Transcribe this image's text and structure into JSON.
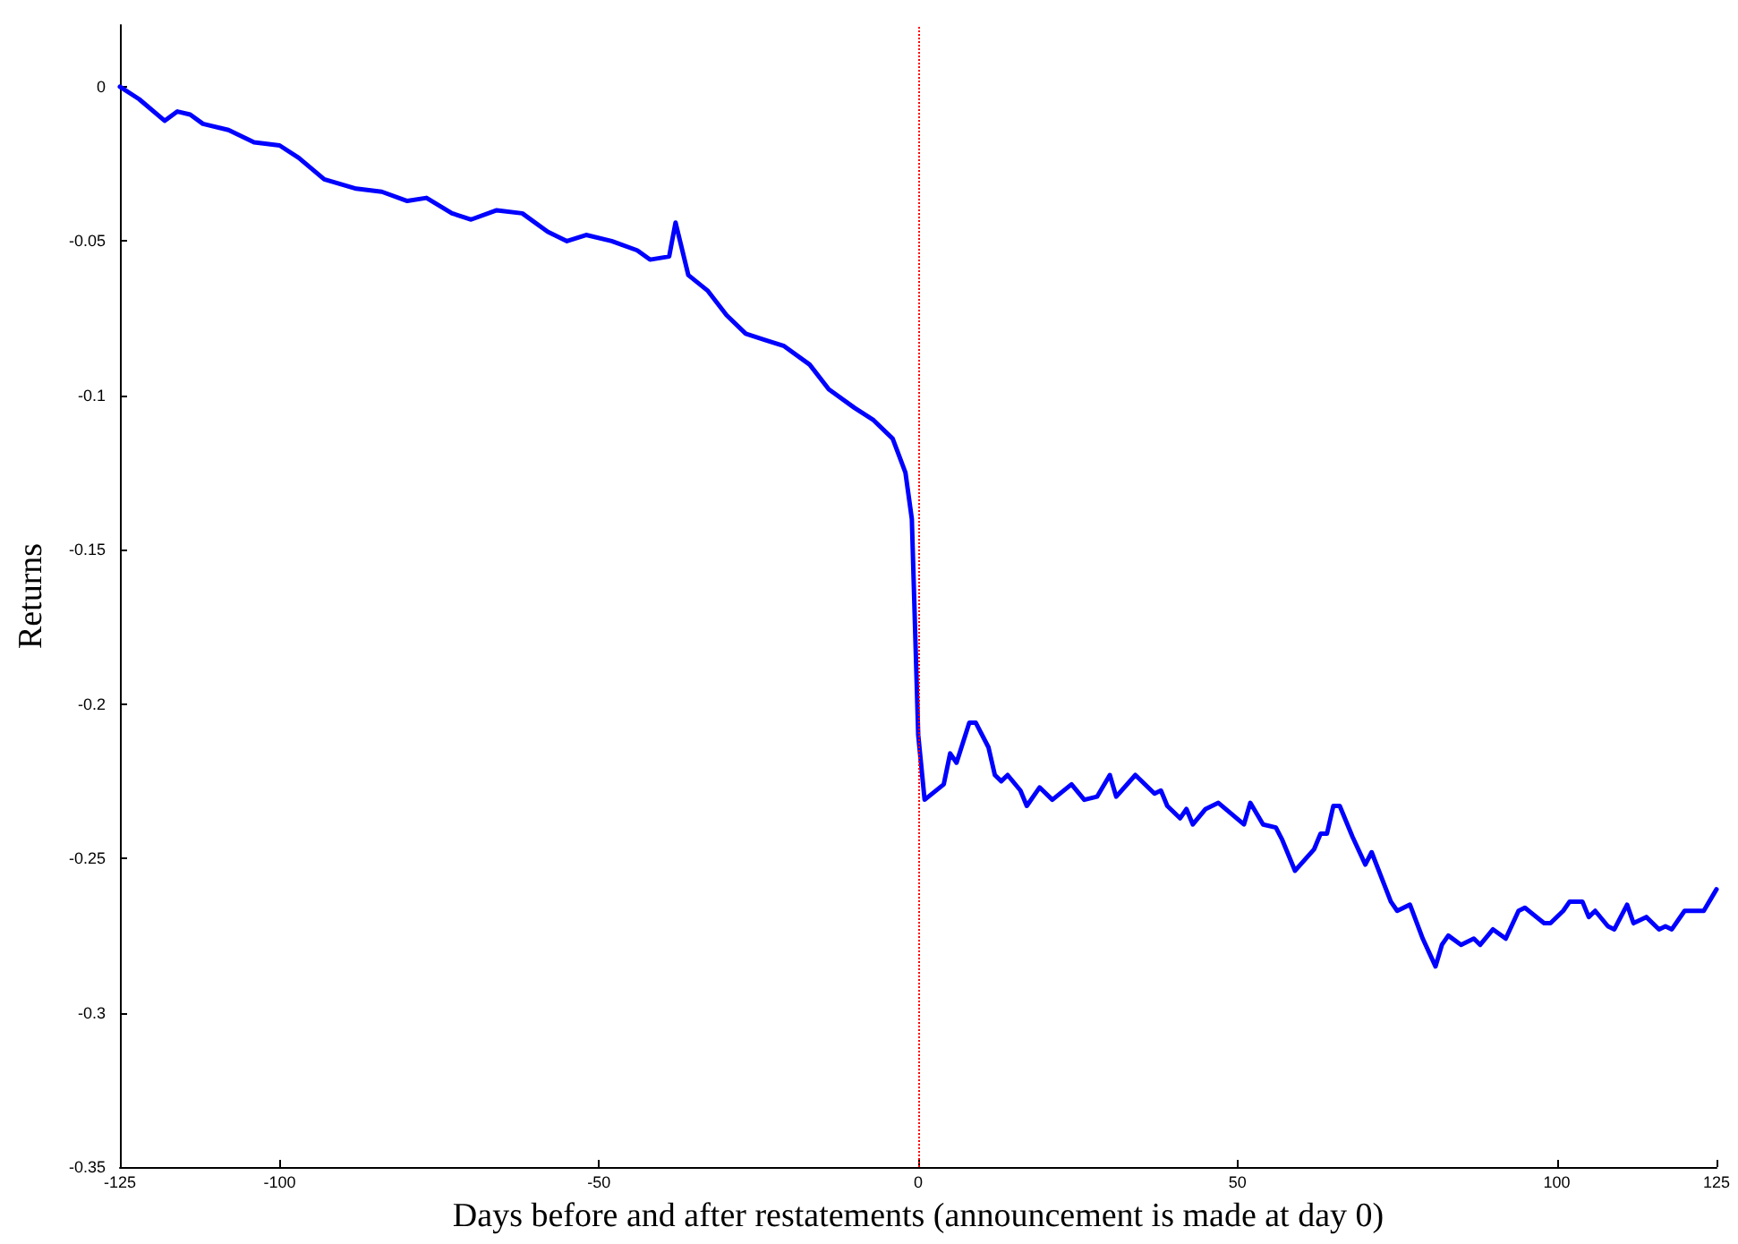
{
  "chart_data": {
    "type": "line",
    "xlabel": "Days before and after restatements (announcement is made at day 0)",
    "ylabel": "Returns",
    "xlim": [
      -125,
      125
    ],
    "xticks": [
      -125,
      -100,
      -50,
      0,
      50,
      100,
      125
    ],
    "ylim": [
      -0.35,
      0.02
    ],
    "yticks": [
      -0.35,
      -0.3,
      -0.25,
      -0.2,
      -0.15,
      -0.1,
      -0.05,
      0
    ],
    "grid": false,
    "marker": "none",
    "line_style": "solid",
    "ref_lines": [
      {
        "axis": "x",
        "value": 0,
        "color": "#ff0000",
        "line_style": "dotted"
      }
    ],
    "series": [
      {
        "color": "#0000ff",
        "x": [
          -125,
          -122,
          -118,
          -116,
          -114,
          -112,
          -108,
          -104,
          -100,
          -97,
          -93,
          -88,
          -84,
          -80,
          -77,
          -73,
          -70,
          -66,
          -62,
          -58,
          -55,
          -52,
          -48,
          -44,
          -42,
          -39,
          -38,
          -36,
          -33,
          -30,
          -27,
          -24,
          -21,
          -17,
          -14,
          -10,
          -7,
          -4,
          -2,
          -1,
          0,
          1,
          4,
          5,
          6,
          8,
          9,
          11,
          12,
          13,
          14,
          16,
          17,
          19,
          21,
          24,
          26,
          28,
          30,
          31,
          34,
          37,
          38,
          39,
          41,
          42,
          43,
          45,
          47,
          51,
          52,
          54,
          56,
          57,
          59,
          62,
          63,
          64,
          65,
          66,
          68,
          70,
          71,
          74,
          75,
          77,
          79,
          81,
          82,
          83,
          85,
          87,
          88,
          90,
          92,
          94,
          95,
          98,
          99,
          101,
          102,
          104,
          105,
          106,
          108,
          109,
          111,
          112,
          114,
          116,
          117,
          118,
          120,
          123,
          125
        ],
        "values": [
          0,
          -0.004,
          -0.011,
          -0.008,
          -0.009,
          -0.012,
          -0.014,
          -0.018,
          -0.019,
          -0.023,
          -0.03,
          -0.033,
          -0.034,
          -0.037,
          -0.036,
          -0.041,
          -0.043,
          -0.04,
          -0.041,
          -0.047,
          -0.05,
          -0.048,
          -0.05,
          -0.053,
          -0.056,
          -0.055,
          -0.044,
          -0.061,
          -0.066,
          -0.074,
          -0.08,
          -0.082,
          -0.084,
          -0.09,
          -0.098,
          -0.104,
          -0.108,
          -0.114,
          -0.125,
          -0.14,
          -0.21,
          -0.231,
          -0.226,
          -0.216,
          -0.219,
          -0.206,
          -0.206,
          -0.214,
          -0.223,
          -0.225,
          -0.223,
          -0.228,
          -0.233,
          -0.227,
          -0.231,
          -0.226,
          -0.231,
          -0.23,
          -0.223,
          -0.23,
          -0.223,
          -0.229,
          -0.228,
          -0.233,
          -0.237,
          -0.234,
          -0.239,
          -0.234,
          -0.232,
          -0.239,
          -0.232,
          -0.239,
          -0.24,
          -0.244,
          -0.254,
          -0.247,
          -0.242,
          -0.242,
          -0.233,
          -0.233,
          -0.243,
          -0.252,
          -0.248,
          -0.264,
          -0.267,
          -0.265,
          -0.276,
          -0.285,
          -0.278,
          -0.275,
          -0.278,
          -0.276,
          -0.278,
          -0.273,
          -0.276,
          -0.267,
          -0.266,
          -0.271,
          -0.271,
          -0.267,
          -0.264,
          -0.264,
          -0.269,
          -0.267,
          -0.272,
          -0.273,
          -0.265,
          -0.271,
          -0.269,
          -0.273,
          -0.272,
          -0.273,
          -0.267,
          -0.267,
          -0.26
        ]
      }
    ]
  }
}
